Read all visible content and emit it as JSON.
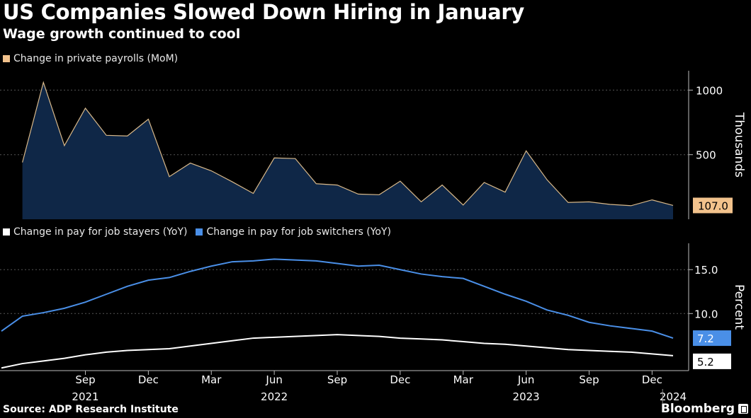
{
  "title": "US Companies Slowed Down Hiring in January",
  "subtitle": "Wage growth continued to cool",
  "source": "Source: ADP Research Institute",
  "brand": "Bloomberg",
  "brand_icon": "bloomberg-logo-icon",
  "colors": {
    "background": "#000000",
    "payroll_fill": "#0f2747",
    "payroll_line": "#d9b98a",
    "payroll_badge": "#f2c28c",
    "stayers": "#ffffff",
    "switchers": "#4a8fe7",
    "grid": "#555555"
  },
  "chart_data": [
    {
      "type": "area",
      "legend": [
        "Change in private payrolls (MoM)"
      ],
      "ylabel": "Thousands",
      "ylim": [
        0,
        1150
      ],
      "yticks": [
        500,
        1000
      ],
      "x": [
        "2021-06",
        "2021-07",
        "2021-08",
        "2021-09",
        "2021-10",
        "2021-11",
        "2021-12",
        "2022-01",
        "2022-02",
        "2022-03",
        "2022-04",
        "2022-05",
        "2022-06",
        "2022-07",
        "2022-08",
        "2022-09",
        "2022-10",
        "2022-11",
        "2022-12",
        "2023-01",
        "2023-02",
        "2023-03",
        "2023-04",
        "2023-05",
        "2023-06",
        "2023-07",
        "2023-08",
        "2023-09",
        "2023-10",
        "2023-11",
        "2023-12",
        "2024-01"
      ],
      "series": [
        {
          "name": "Change in private payrolls (MoM)",
          "values": [
            440,
            1060,
            570,
            860,
            650,
            645,
            775,
            330,
            435,
            375,
            290,
            200,
            475,
            470,
            275,
            265,
            195,
            190,
            295,
            135,
            265,
            110,
            285,
            210,
            530,
            305,
            130,
            135,
            115,
            105,
            150,
            107
          ]
        }
      ],
      "end_label": "107.0"
    },
    {
      "type": "line",
      "legend": [
        "Change in pay for job stayers (YoY)",
        "Change in pay for job switchers (YoY)"
      ],
      "ylabel": "Percent",
      "ylim": [
        3.5,
        18.0
      ],
      "yticks": [
        "10.0",
        "15.0"
      ],
      "x": [
        "2021-05",
        "2021-06",
        "2021-07",
        "2021-08",
        "2021-09",
        "2021-10",
        "2021-11",
        "2021-12",
        "2022-01",
        "2022-02",
        "2022-03",
        "2022-04",
        "2022-05",
        "2022-06",
        "2022-07",
        "2022-08",
        "2022-09",
        "2022-10",
        "2022-11",
        "2022-12",
        "2023-01",
        "2023-02",
        "2023-03",
        "2023-04",
        "2023-05",
        "2023-06",
        "2023-07",
        "2023-08",
        "2023-09",
        "2023-10",
        "2023-11",
        "2023-12",
        "2024-01"
      ],
      "series": [
        {
          "name": "Change in pay for job stayers (YoY)",
          "values": [
            3.8,
            4.3,
            4.6,
            4.9,
            5.3,
            5.6,
            5.8,
            5.9,
            6.0,
            6.3,
            6.6,
            6.9,
            7.2,
            7.3,
            7.4,
            7.5,
            7.6,
            7.5,
            7.4,
            7.2,
            7.1,
            7.0,
            6.8,
            6.6,
            6.5,
            6.3,
            6.1,
            5.9,
            5.8,
            5.7,
            5.6,
            5.4,
            5.2
          ]
        },
        {
          "name": "Change in pay for job switchers (YoY)",
          "values": [
            8.0,
            9.7,
            10.1,
            10.6,
            11.3,
            12.2,
            13.1,
            13.8,
            14.1,
            14.8,
            15.4,
            15.9,
            16.0,
            16.2,
            16.1,
            16.0,
            15.7,
            15.4,
            15.5,
            15.0,
            14.5,
            14.2,
            14.0,
            13.1,
            12.2,
            11.4,
            10.4,
            9.8,
            9.0,
            8.6,
            8.3,
            8.0,
            7.2
          ]
        }
      ],
      "end_labels": [
        "5.2",
        "7.2"
      ]
    }
  ],
  "x_axis": {
    "month_ticks": [
      {
        "date": "2021-09",
        "label": "Sep"
      },
      {
        "date": "2021-12",
        "label": "Dec"
      },
      {
        "date": "2022-03",
        "label": "Mar"
      },
      {
        "date": "2022-06",
        "label": "Jun"
      },
      {
        "date": "2022-09",
        "label": "Sep"
      },
      {
        "date": "2022-12",
        "label": "Dec"
      },
      {
        "date": "2023-03",
        "label": "Mar"
      },
      {
        "date": "2023-06",
        "label": "Jun"
      },
      {
        "date": "2023-09",
        "label": "Sep"
      },
      {
        "date": "2023-12",
        "label": "Dec"
      }
    ],
    "year_labels": [
      {
        "date": "2021-09",
        "label": "2021"
      },
      {
        "date": "2022-06",
        "label": "2022"
      },
      {
        "date": "2023-06",
        "label": "2023"
      },
      {
        "date": "2024-01",
        "label": "2024"
      }
    ],
    "range": [
      "2021-05",
      "2024-01"
    ]
  }
}
